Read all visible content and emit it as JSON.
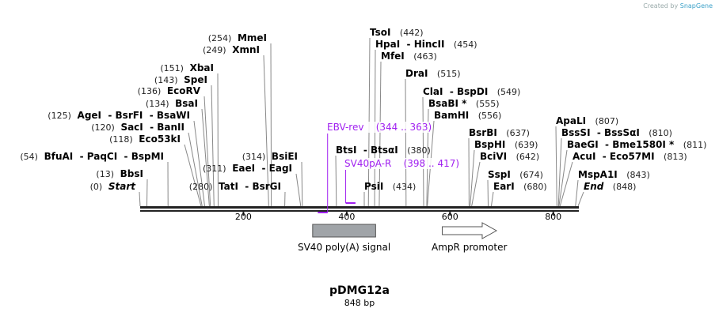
{
  "credit": {
    "prefix": "Created by",
    "brand": "SnapGene"
  },
  "plasmid": {
    "name": "pDMG12a",
    "length_label": "848 bp",
    "length": 848
  },
  "ruler": {
    "ticks": [
      "200",
      "400",
      "600",
      "800"
    ]
  },
  "sites": [
    {
      "name": "Start",
      "pos": "(0)",
      "bp": 0,
      "italic": true
    },
    {
      "name": "BbsI",
      "pos": "(13)",
      "bp": 13
    },
    {
      "name": "BfuAI  - PaqCI  - BspMI",
      "pos": "(54)",
      "bp": 54
    },
    {
      "name": "Eco53kI",
      "pos": "(118)",
      "bp": 118
    },
    {
      "name": "SacI  - BanII",
      "pos": "(120)",
      "bp": 120
    },
    {
      "name": "AgeI  - BsrFI  - BsaWI",
      "pos": "(125)",
      "bp": 125
    },
    {
      "name": "BsaI",
      "pos": "(134)",
      "bp": 134
    },
    {
      "name": "EcoRV",
      "pos": "(136)",
      "bp": 136
    },
    {
      "name": "SpeI",
      "pos": "(143)",
      "bp": 143
    },
    {
      "name": "XbaI",
      "pos": "(151)",
      "bp": 151
    },
    {
      "name": "XmnI",
      "pos": "(249)",
      "bp": 249
    },
    {
      "name": "MmeI",
      "pos": "(254)",
      "bp": 254
    },
    {
      "name": "TatI  - BsrGI",
      "pos": "(280)",
      "bp": 280
    },
    {
      "name": "EaeI  - EagI",
      "pos": "(311)",
      "bp": 311
    },
    {
      "name": "BsiEI",
      "pos": "(314)",
      "bp": 314
    },
    {
      "name": "BtsI  - BtsαI",
      "pos": "(380)",
      "bp": 380
    },
    {
      "name": "PsiI",
      "pos": "(434)",
      "bp": 434
    },
    {
      "name": "TsoI",
      "pos": "(442)",
      "bp": 442
    },
    {
      "name": "HpaI  - HincII",
      "pos": "(454)",
      "bp": 454
    },
    {
      "name": "MfeI",
      "pos": "(463)",
      "bp": 463
    },
    {
      "name": "DraI",
      "pos": "(515)",
      "bp": 515
    },
    {
      "name": "ClaI  - BspDI",
      "pos": "(549)",
      "bp": 549
    },
    {
      "name": "BsaBI *",
      "pos": "(555)",
      "bp": 555
    },
    {
      "name": "BamHI",
      "pos": "(556)",
      "bp": 556
    },
    {
      "name": "BsrBI",
      "pos": "(637)",
      "bp": 637
    },
    {
      "name": "BspHI",
      "pos": "(639)",
      "bp": 639
    },
    {
      "name": "BciVI",
      "pos": "(642)",
      "bp": 642
    },
    {
      "name": "SspI",
      "pos": "(674)",
      "bp": 674
    },
    {
      "name": "EarI",
      "pos": "(680)",
      "bp": 680
    },
    {
      "name": "ApaLI",
      "pos": "(807)",
      "bp": 807
    },
    {
      "name": "BssSI  - BssSαI",
      "pos": "(810)",
      "bp": 810
    },
    {
      "name": "BaeGI  - Bme1580I *",
      "pos": "(811)",
      "bp": 811
    },
    {
      "name": "AcuI  - Eco57MI",
      "pos": "(813)",
      "bp": 813
    },
    {
      "name": "MspA1I",
      "pos": "(843)",
      "bp": 843
    },
    {
      "name": "End",
      "pos": "(848)",
      "bp": 848,
      "italic": true
    }
  ],
  "primers": [
    {
      "name": "EBV-rev",
      "range": "(344 .. 363)",
      "start": 344,
      "end": 363,
      "strand": "reverse"
    },
    {
      "name": "SV40pA-R",
      "range": "(398 .. 417)",
      "start": 398,
      "end": 417,
      "strand": "forward"
    }
  ],
  "features": [
    {
      "name": "SV40 poly(A) signal",
      "start": 334,
      "end": 456,
      "shape": "box",
      "color": "#a0a4a8"
    },
    {
      "name": "AmpR promoter",
      "start": 585,
      "end": 690,
      "shape": "arrow",
      "color": "#ffffff"
    }
  ],
  "colors": {
    "primer": "#a020f0",
    "backbone": "#222222",
    "site_line": "#888888"
  }
}
